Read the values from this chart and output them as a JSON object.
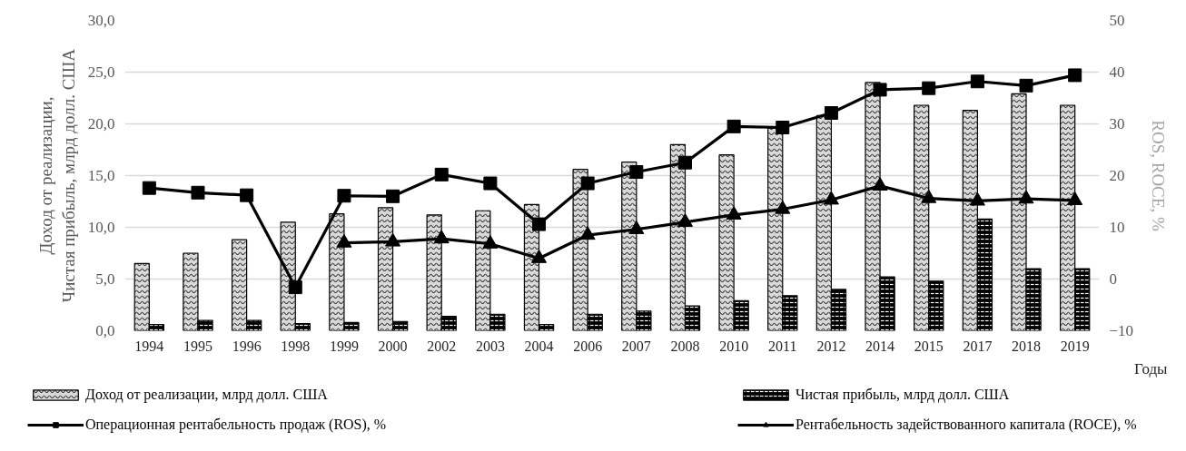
{
  "chart_data": {
    "type": "bar",
    "categories": [
      "1994",
      "1995",
      "1996",
      "1998",
      "1999",
      "2000",
      "2002",
      "2003",
      "2004",
      "2006",
      "2007",
      "2008",
      "2010",
      "2011",
      "2012",
      "2014",
      "2015",
      "2017",
      "2018",
      "2019"
    ],
    "xlabel": "Годы",
    "ylabel": "Доход от реализации,\nЧистая прибыль, млрд долл. США",
    "y2label": "ROS, ROCE, %",
    "ylim": [
      0,
      30
    ],
    "yticks": [
      {
        "value": 0,
        "label": "0,0"
      },
      {
        "value": 5,
        "label": "5,0"
      },
      {
        "value": 10,
        "label": "10,0"
      },
      {
        "value": 15,
        "label": "15,0"
      },
      {
        "value": 20,
        "label": "20,0"
      },
      {
        "value": 25,
        "label": "25,0"
      },
      {
        "value": 30,
        "label": "30,0"
      }
    ],
    "y2lim": [
      -10,
      50
    ],
    "y2ticks": [
      -10,
      0,
      10,
      20,
      30,
      40,
      50
    ],
    "grid": "y",
    "legend": "bottom",
    "series": [
      {
        "name": "Доход от реализации, млрд долл. США",
        "color": "#d9d9d9",
        "values": [
          6.5,
          7.5,
          8.8,
          10.5,
          11.3,
          11.9,
          11.2,
          11.6,
          12.2,
          15.6,
          16.3,
          18.0,
          17.0,
          19.6,
          20.8,
          24.0,
          21.8,
          21.3,
          22.9,
          21.8
        ]
      },
      {
        "name": "Чистая прибыль, млрд долл. США",
        "color": "#000000",
        "values": [
          0.6,
          1.0,
          1.0,
          0.7,
          0.8,
          0.9,
          1.4,
          1.6,
          0.6,
          1.6,
          1.9,
          2.4,
          2.9,
          3.4,
          4.0,
          5.2,
          4.8,
          10.8,
          6.0,
          6.0
        ]
      },
      {
        "name": "Операционная рентабельность продаж (ROS), %",
        "type": "line",
        "axis": "y2",
        "marker": "square",
        "color": "#000000",
        "values": [
          17.6,
          16.7,
          16.2,
          -1.6,
          16.1,
          16.0,
          20.2,
          18.5,
          10.6,
          18.5,
          20.7,
          22.5,
          29.5,
          29.3,
          32.1,
          36.6,
          36.9,
          38.2,
          37.4,
          39.4
        ]
      },
      {
        "name": "Рентабельность задействованного капитала (ROCE), %",
        "type": "line",
        "axis": "y2",
        "marker": "triangle",
        "color": "#000000",
        "values": [
          null,
          null,
          null,
          null,
          7.0,
          7.2,
          7.8,
          6.8,
          4.0,
          8.5,
          9.6,
          11.0,
          12.4,
          13.5,
          15.3,
          18.0,
          15.6,
          15.1,
          15.5,
          15.2
        ]
      }
    ]
  }
}
